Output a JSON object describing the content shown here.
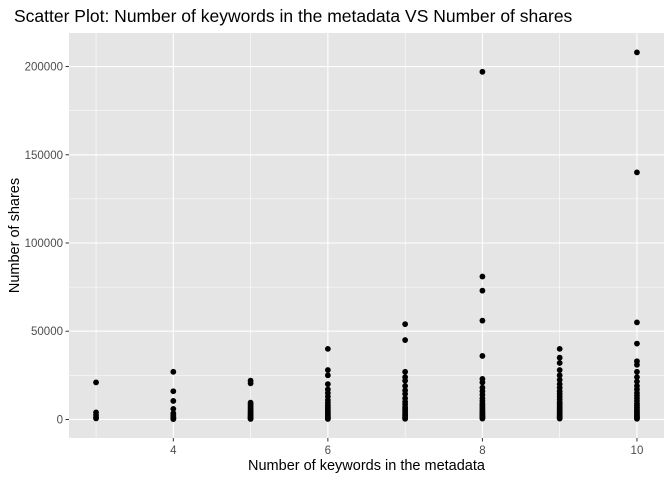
{
  "chart_data": {
    "type": "scatter",
    "title": "Scatter Plot: Number of keywords in the metadata VS Number of shares",
    "xlabel": "Number of keywords in the metadata",
    "ylabel": "Number of shares",
    "xlim": [
      2.65,
      10.35
    ],
    "ylim": [
      -10500,
      219000
    ],
    "xticks": [
      4,
      6,
      8,
      10
    ],
    "yticks": [
      0,
      50000,
      100000,
      150000,
      200000
    ],
    "xtick_labels": [
      "4",
      "6",
      "8",
      "10"
    ],
    "ytick_labels": [
      "0",
      "50000",
      "100000",
      "150000",
      "200000"
    ],
    "grid": true,
    "legend": "none",
    "colors": {
      "panel": "#e5e5e5",
      "grid_major": "#ffffff",
      "point": "#000000"
    },
    "points": [
      {
        "x": 3,
        "y": 21000
      },
      {
        "x": 3,
        "y": 4000
      },
      {
        "x": 3,
        "y": 2500
      },
      {
        "x": 3,
        "y": 1200
      },
      {
        "x": 3,
        "y": 600
      },
      {
        "x": 4,
        "y": 27000
      },
      {
        "x": 4,
        "y": 16000
      },
      {
        "x": 4,
        "y": 10500
      },
      {
        "x": 4,
        "y": 6000
      },
      {
        "x": 4,
        "y": 3500
      },
      {
        "x": 4,
        "y": 2500
      },
      {
        "x": 4,
        "y": 1500
      },
      {
        "x": 4,
        "y": 900
      },
      {
        "x": 4,
        "y": 500
      },
      {
        "x": 4,
        "y": 200
      },
      {
        "x": 5,
        "y": 22000
      },
      {
        "x": 5,
        "y": 20500
      },
      {
        "x": 5,
        "y": 9500
      },
      {
        "x": 5,
        "y": 8500
      },
      {
        "x": 5,
        "y": 7500
      },
      {
        "x": 5,
        "y": 6500
      },
      {
        "x": 5,
        "y": 5500
      },
      {
        "x": 5,
        "y": 4800
      },
      {
        "x": 5,
        "y": 4000
      },
      {
        "x": 5,
        "y": 3300
      },
      {
        "x": 5,
        "y": 2600
      },
      {
        "x": 5,
        "y": 2000
      },
      {
        "x": 5,
        "y": 1500
      },
      {
        "x": 5,
        "y": 1000
      },
      {
        "x": 5,
        "y": 600
      },
      {
        "x": 5,
        "y": 300
      },
      {
        "x": 6,
        "y": 40000
      },
      {
        "x": 6,
        "y": 28000
      },
      {
        "x": 6,
        "y": 25000
      },
      {
        "x": 6,
        "y": 20000
      },
      {
        "x": 6,
        "y": 17000
      },
      {
        "x": 6,
        "y": 15000
      },
      {
        "x": 6,
        "y": 13000
      },
      {
        "x": 6,
        "y": 11000
      },
      {
        "x": 6,
        "y": 9500
      },
      {
        "x": 6,
        "y": 8000
      },
      {
        "x": 6,
        "y": 7000
      },
      {
        "x": 6,
        "y": 6000
      },
      {
        "x": 6,
        "y": 5000
      },
      {
        "x": 6,
        "y": 4000
      },
      {
        "x": 6,
        "y": 3200
      },
      {
        "x": 6,
        "y": 2500
      },
      {
        "x": 6,
        "y": 1800
      },
      {
        "x": 6,
        "y": 1200
      },
      {
        "x": 6,
        "y": 700
      },
      {
        "x": 6,
        "y": 300
      },
      {
        "x": 7,
        "y": 54000
      },
      {
        "x": 7,
        "y": 45000
      },
      {
        "x": 7,
        "y": 27000
      },
      {
        "x": 7,
        "y": 24000
      },
      {
        "x": 7,
        "y": 22000
      },
      {
        "x": 7,
        "y": 19000
      },
      {
        "x": 7,
        "y": 16500
      },
      {
        "x": 7,
        "y": 14500
      },
      {
        "x": 7,
        "y": 12000
      },
      {
        "x": 7,
        "y": 10000
      },
      {
        "x": 7,
        "y": 8500
      },
      {
        "x": 7,
        "y": 7000
      },
      {
        "x": 7,
        "y": 6000
      },
      {
        "x": 7,
        "y": 5000
      },
      {
        "x": 7,
        "y": 4000
      },
      {
        "x": 7,
        "y": 3000
      },
      {
        "x": 7,
        "y": 2200
      },
      {
        "x": 7,
        "y": 1500
      },
      {
        "x": 7,
        "y": 900
      },
      {
        "x": 7,
        "y": 400
      },
      {
        "x": 8,
        "y": 197000
      },
      {
        "x": 8,
        "y": 81000
      },
      {
        "x": 8,
        "y": 73000
      },
      {
        "x": 8,
        "y": 56000
      },
      {
        "x": 8,
        "y": 36000
      },
      {
        "x": 8,
        "y": 23000
      },
      {
        "x": 8,
        "y": 21000
      },
      {
        "x": 8,
        "y": 18000
      },
      {
        "x": 8,
        "y": 16000
      },
      {
        "x": 8,
        "y": 14000
      },
      {
        "x": 8,
        "y": 12000
      },
      {
        "x": 8,
        "y": 10500
      },
      {
        "x": 8,
        "y": 9000
      },
      {
        "x": 8,
        "y": 8000
      },
      {
        "x": 8,
        "y": 7000
      },
      {
        "x": 8,
        "y": 6000
      },
      {
        "x": 8,
        "y": 5000
      },
      {
        "x": 8,
        "y": 4200
      },
      {
        "x": 8,
        "y": 3500
      },
      {
        "x": 8,
        "y": 2800
      },
      {
        "x": 8,
        "y": 2100
      },
      {
        "x": 8,
        "y": 1500
      },
      {
        "x": 8,
        "y": 1000
      },
      {
        "x": 8,
        "y": 500
      },
      {
        "x": 9,
        "y": 40000
      },
      {
        "x": 9,
        "y": 35000
      },
      {
        "x": 9,
        "y": 32000
      },
      {
        "x": 9,
        "y": 28000
      },
      {
        "x": 9,
        "y": 25000
      },
      {
        "x": 9,
        "y": 22500
      },
      {
        "x": 9,
        "y": 20000
      },
      {
        "x": 9,
        "y": 18000
      },
      {
        "x": 9,
        "y": 16000
      },
      {
        "x": 9,
        "y": 14500
      },
      {
        "x": 9,
        "y": 13000
      },
      {
        "x": 9,
        "y": 11500
      },
      {
        "x": 9,
        "y": 10000
      },
      {
        "x": 9,
        "y": 9000
      },
      {
        "x": 9,
        "y": 8000
      },
      {
        "x": 9,
        "y": 7000
      },
      {
        "x": 9,
        "y": 6000
      },
      {
        "x": 9,
        "y": 5200
      },
      {
        "x": 9,
        "y": 4400
      },
      {
        "x": 9,
        "y": 3600
      },
      {
        "x": 9,
        "y": 2800
      },
      {
        "x": 9,
        "y": 2100
      },
      {
        "x": 9,
        "y": 1500
      },
      {
        "x": 9,
        "y": 1000
      },
      {
        "x": 9,
        "y": 500
      },
      {
        "x": 10,
        "y": 208000
      },
      {
        "x": 10,
        "y": 140000
      },
      {
        "x": 10,
        "y": 55000
      },
      {
        "x": 10,
        "y": 43000
      },
      {
        "x": 10,
        "y": 33000
      },
      {
        "x": 10,
        "y": 31000
      },
      {
        "x": 10,
        "y": 27000
      },
      {
        "x": 10,
        "y": 24000
      },
      {
        "x": 10,
        "y": 21500
      },
      {
        "x": 10,
        "y": 19000
      },
      {
        "x": 10,
        "y": 17000
      },
      {
        "x": 10,
        "y": 15000
      },
      {
        "x": 10,
        "y": 13500
      },
      {
        "x": 10,
        "y": 12000
      },
      {
        "x": 10,
        "y": 10500
      },
      {
        "x": 10,
        "y": 9000
      },
      {
        "x": 10,
        "y": 8000
      },
      {
        "x": 10,
        "y": 7000
      },
      {
        "x": 10,
        "y": 6000
      },
      {
        "x": 10,
        "y": 5000
      },
      {
        "x": 10,
        "y": 4200
      },
      {
        "x": 10,
        "y": 3400
      },
      {
        "x": 10,
        "y": 2600
      },
      {
        "x": 10,
        "y": 1900
      },
      {
        "x": 10,
        "y": 1300
      },
      {
        "x": 10,
        "y": 800
      },
      {
        "x": 10,
        "y": 400
      }
    ]
  }
}
